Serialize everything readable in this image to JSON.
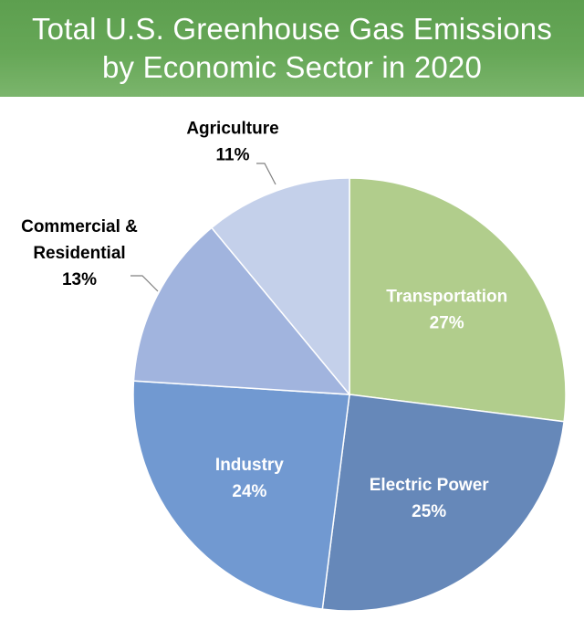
{
  "title": {
    "line1": "Total U.S. Greenhouse Gas Emissions",
    "line2": "by Economic Sector in 2020"
  },
  "chart_data": {
    "type": "pie",
    "title": "Total U.S. Greenhouse Gas Emissions by Economic Sector in 2020",
    "slices": [
      {
        "label_lines": [
          "Transportation"
        ],
        "percent_label": "27%",
        "value": 27,
        "color": "#b1cd8c",
        "label_color": "#ffffff",
        "label_position": "inside"
      },
      {
        "label_lines": [
          "Electric Power"
        ],
        "percent_label": "25%",
        "value": 25,
        "color": "#6688b9",
        "label_color": "#ffffff",
        "label_position": "inside"
      },
      {
        "label_lines": [
          "Industry"
        ],
        "percent_label": "24%",
        "value": 24,
        "color": "#7199d1",
        "label_color": "#ffffff",
        "label_position": "inside"
      },
      {
        "label_lines": [
          "Commercial &",
          "Residential"
        ],
        "percent_label": "13%",
        "value": 13,
        "color": "#a1b4de",
        "label_color": "#000000",
        "label_position": "outside"
      },
      {
        "label_lines": [
          "Agriculture"
        ],
        "percent_label": "11%",
        "value": 11,
        "color": "#c4d0ea",
        "label_color": "#000000",
        "label_position": "outside"
      }
    ]
  }
}
